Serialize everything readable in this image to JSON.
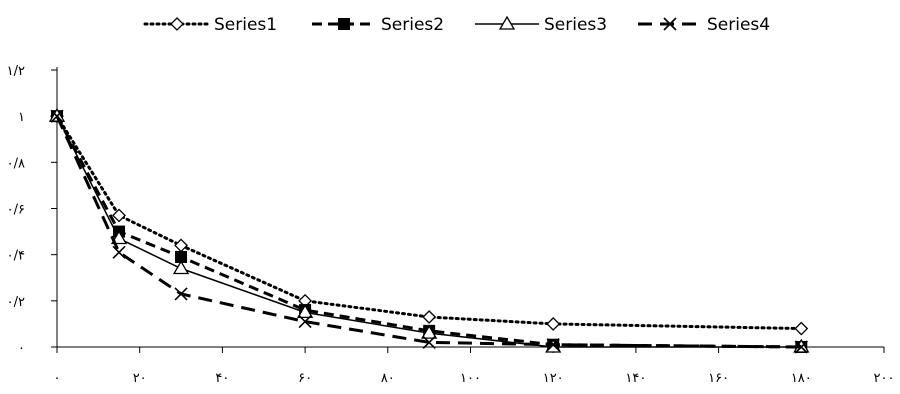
{
  "chart_data": {
    "type": "line",
    "title": "",
    "xlabel": "",
    "ylabel": "",
    "xlim": [
      0,
      200
    ],
    "ylim": [
      0,
      1.2
    ],
    "x_ticks": [
      {
        "value": 0,
        "label": "۰"
      },
      {
        "value": 20,
        "label": "۲۰"
      },
      {
        "value": 40,
        "label": "۴۰"
      },
      {
        "value": 60,
        "label": "۶۰"
      },
      {
        "value": 80,
        "label": "۸۰"
      },
      {
        "value": 100,
        "label": "۱۰۰"
      },
      {
        "value": 120,
        "label": "۱۲۰"
      },
      {
        "value": 140,
        "label": "۱۴۰"
      },
      {
        "value": 160,
        "label": "۱۶۰"
      },
      {
        "value": 180,
        "label": "۱۸۰"
      },
      {
        "value": 200,
        "label": "۲۰۰"
      }
    ],
    "y_ticks": [
      {
        "value": 0,
        "label": "۰"
      },
      {
        "value": 0.2,
        "label": "۰/۲"
      },
      {
        "value": 0.4,
        "label": "۰/۴"
      },
      {
        "value": 0.6,
        "label": "۰/۶"
      },
      {
        "value": 0.8,
        "label": "۰/۸"
      },
      {
        "value": 1.0,
        "label": "۱"
      },
      {
        "value": 1.2,
        "label": "۱/۲"
      }
    ],
    "grid": false,
    "legend_position": "top",
    "x": [
      0,
      15,
      30,
      60,
      90,
      120,
      180
    ],
    "series": [
      {
        "name": "Series1",
        "line_style": "dotted",
        "marker": "diamond-open",
        "values": [
          1.0,
          0.57,
          0.44,
          0.2,
          0.13,
          0.1,
          0.08
        ]
      },
      {
        "name": "Series2",
        "line_style": "dashed",
        "marker": "square-filled",
        "values": [
          1.0,
          0.5,
          0.39,
          0.16,
          0.07,
          0.01,
          0.0
        ]
      },
      {
        "name": "Series3",
        "line_style": "solid",
        "marker": "triangle-open",
        "values": [
          1.0,
          0.47,
          0.34,
          0.15,
          0.06,
          0.0,
          0.0
        ]
      },
      {
        "name": "Series4",
        "line_style": "long-dashed",
        "marker": "x",
        "values": [
          1.0,
          0.41,
          0.23,
          0.11,
          0.02,
          0.01,
          0.0
        ]
      }
    ]
  }
}
